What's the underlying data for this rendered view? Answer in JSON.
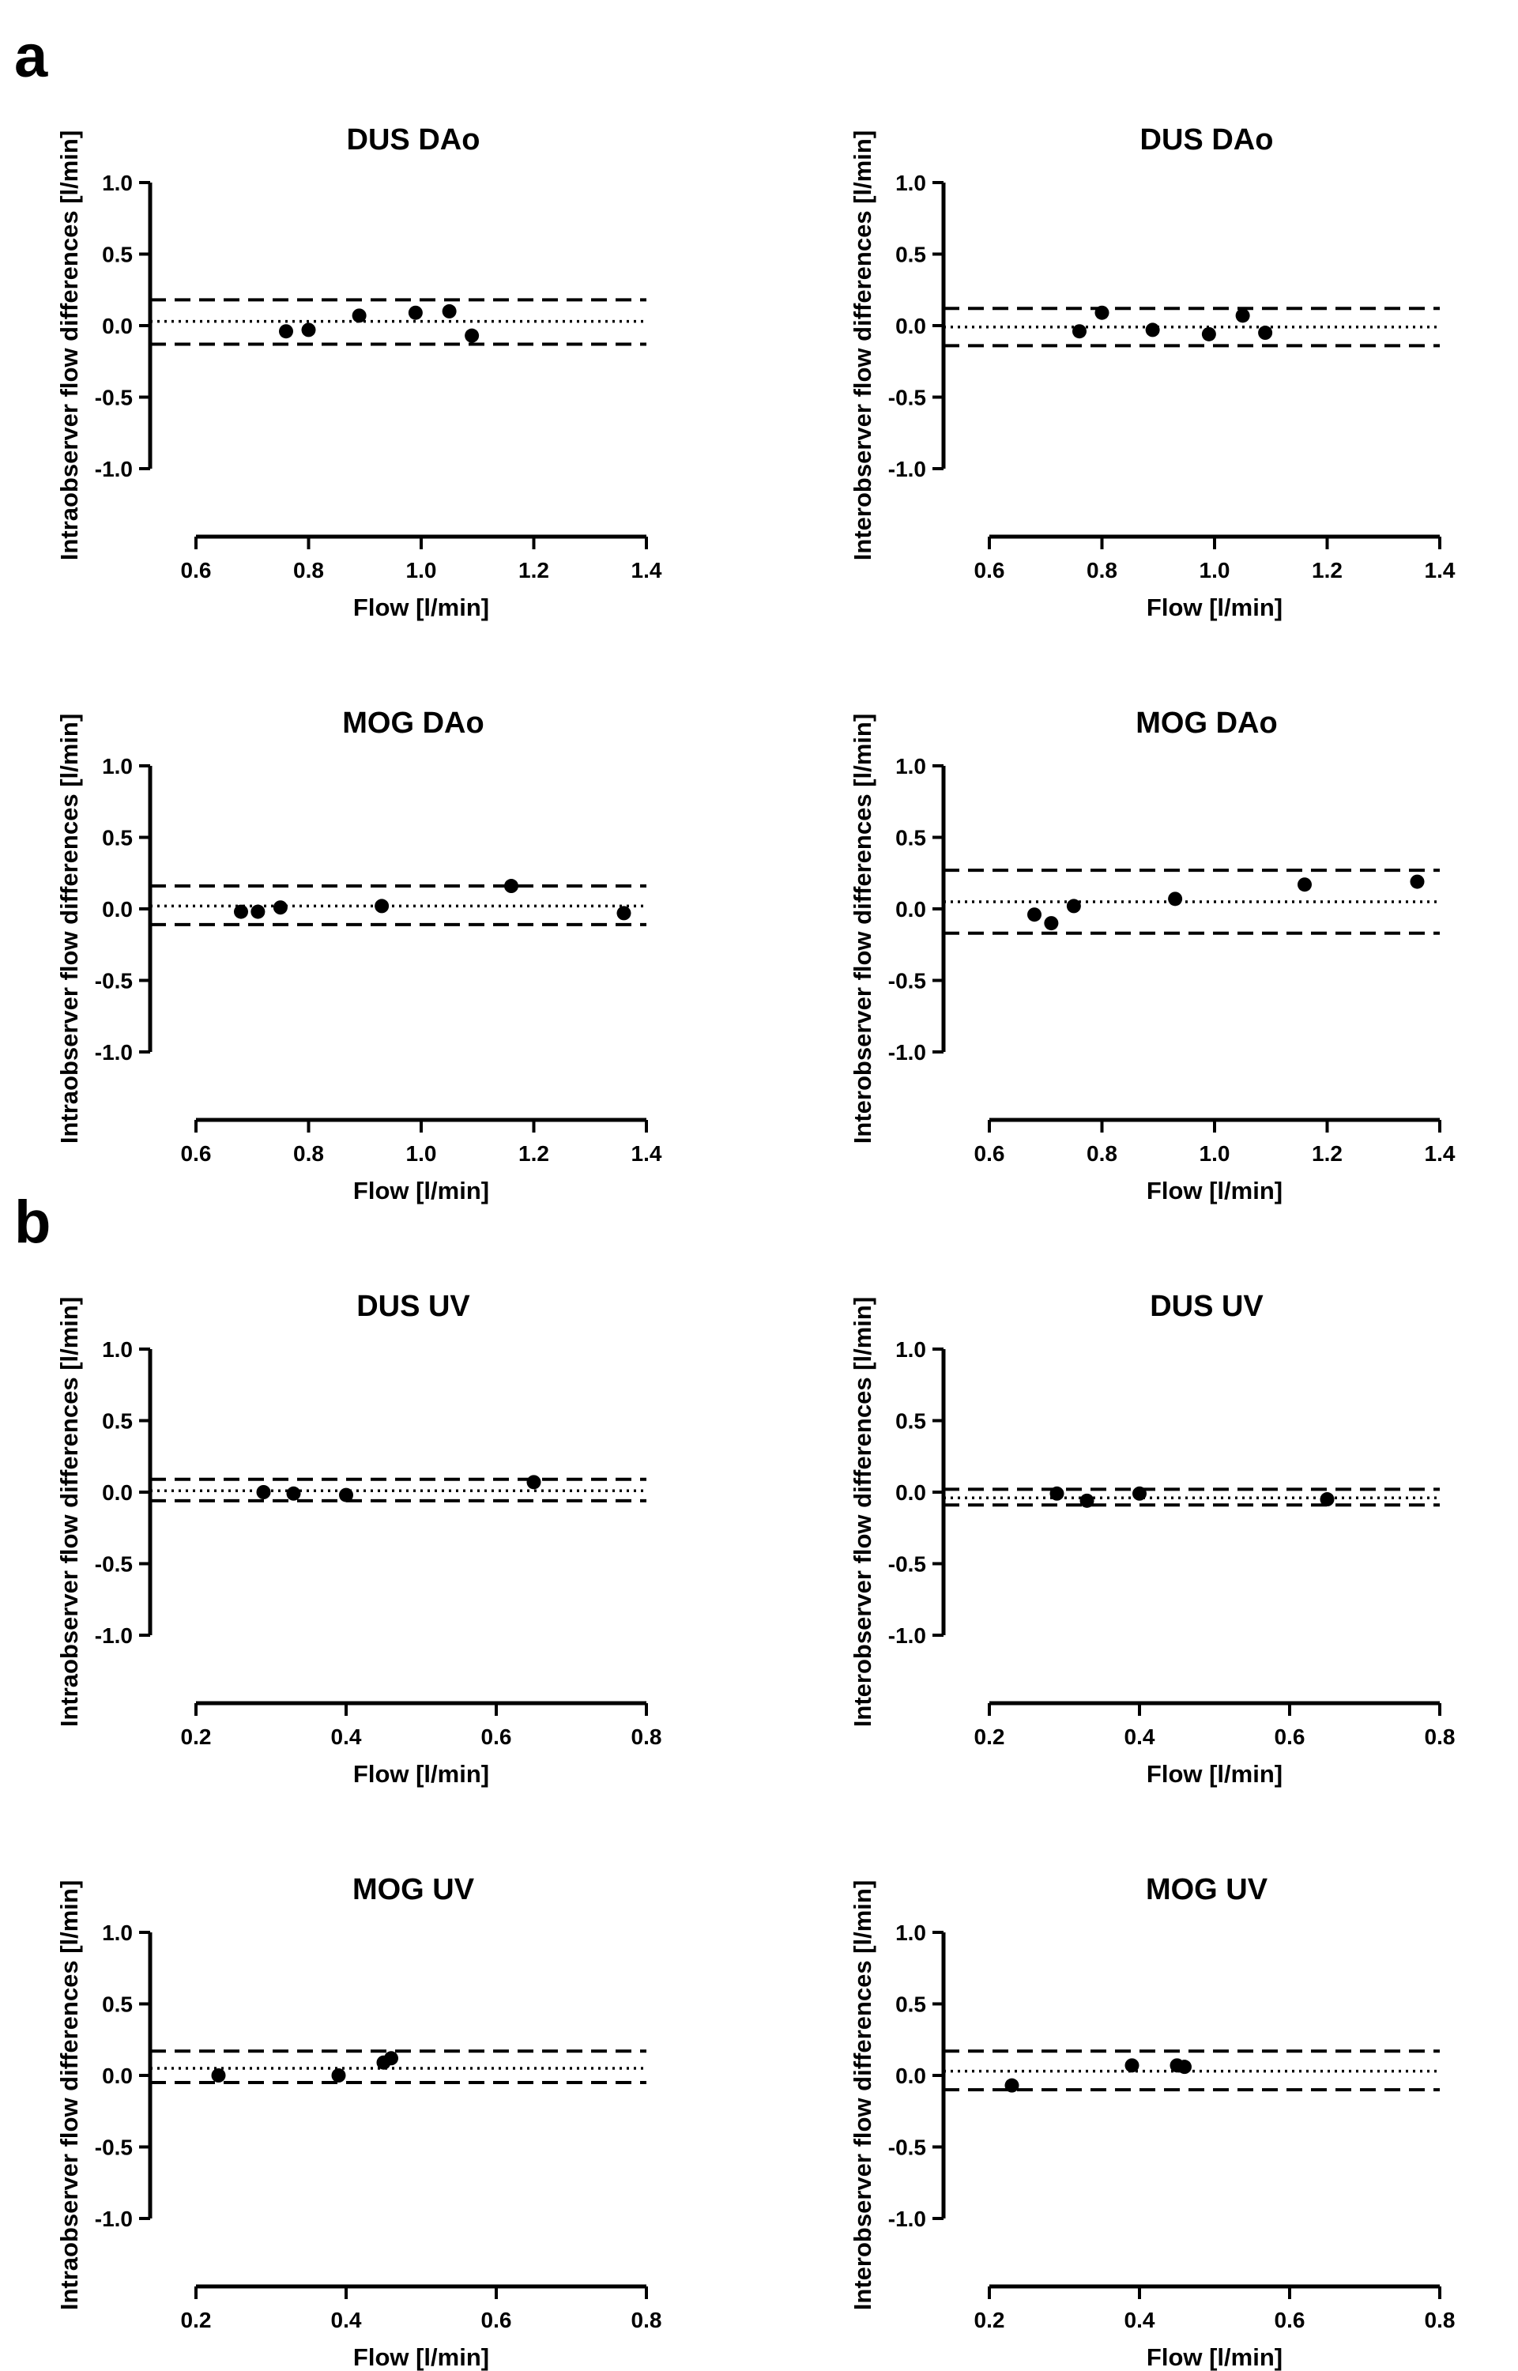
{
  "figure": {
    "panel_letters": [
      "a",
      "b"
    ]
  },
  "chart_data": [
    {
      "type": "scatter",
      "panel": "a",
      "title": "DUS DAo",
      "xlabel": "Flow [l/min]",
      "ylabel": "Intraobserver flow differences [l/min]",
      "xlim": [
        0.6,
        1.4
      ],
      "ylim": [
        -1.0,
        1.0
      ],
      "xticks": [
        0.6,
        0.8,
        1.0,
        1.2,
        1.4
      ],
      "xtick_labels": [
        "0.6",
        "0.8",
        "1.0",
        "1.2",
        "1.4"
      ],
      "yticks": [
        1.0,
        0.5,
        0.0,
        -0.5,
        -1.0
      ],
      "ytick_labels": [
        "1.0",
        "0.5",
        "0.0",
        "-0.5",
        "-1.0"
      ],
      "points": [
        {
          "x": 0.76,
          "y": -0.04
        },
        {
          "x": 0.8,
          "y": -0.03
        },
        {
          "x": 0.89,
          "y": 0.07
        },
        {
          "x": 0.99,
          "y": 0.09
        },
        {
          "x": 1.05,
          "y": 0.1
        },
        {
          "x": 1.09,
          "y": -0.07
        }
      ],
      "mean_line": 0.03,
      "limits_of_agreement": [
        0.18,
        -0.13
      ]
    },
    {
      "type": "scatter",
      "panel": "a",
      "title": "DUS DAo",
      "xlabel": "Flow [l/min]",
      "ylabel": "Interobserver flow differences [l/min]",
      "xlim": [
        0.6,
        1.4
      ],
      "ylim": [
        -1.0,
        1.0
      ],
      "xticks": [
        0.6,
        0.8,
        1.0,
        1.2,
        1.4
      ],
      "xtick_labels": [
        "0.6",
        "0.8",
        "1.0",
        "1.2",
        "1.4"
      ],
      "yticks": [
        1.0,
        0.5,
        0.0,
        -0.5,
        -1.0
      ],
      "ytick_labels": [
        "1.0",
        "0.5",
        "0.0",
        "-0.5",
        "-1.0"
      ],
      "points": [
        {
          "x": 0.76,
          "y": -0.04
        },
        {
          "x": 0.8,
          "y": 0.09
        },
        {
          "x": 0.89,
          "y": -0.03
        },
        {
          "x": 0.99,
          "y": -0.06
        },
        {
          "x": 1.05,
          "y": 0.07
        },
        {
          "x": 1.09,
          "y": -0.05
        }
      ],
      "mean_line": -0.01,
      "limits_of_agreement": [
        0.12,
        -0.14
      ]
    },
    {
      "type": "scatter",
      "panel": "a",
      "title": "MOG DAo",
      "xlabel": "Flow [l/min]",
      "ylabel": "Intraobserver flow differences [l/min]",
      "xlim": [
        0.6,
        1.4
      ],
      "ylim": [
        -1.0,
        1.0
      ],
      "xticks": [
        0.6,
        0.8,
        1.0,
        1.2,
        1.4
      ],
      "xtick_labels": [
        "0.6",
        "0.8",
        "1.0",
        "1.2",
        "1.4"
      ],
      "yticks": [
        1.0,
        0.5,
        0.0,
        -0.5,
        -1.0
      ],
      "ytick_labels": [
        "1.0",
        "0.5",
        "0.0",
        "-0.5",
        "-1.0"
      ],
      "points": [
        {
          "x": 0.68,
          "y": -0.02
        },
        {
          "x": 0.71,
          "y": -0.02
        },
        {
          "x": 0.75,
          "y": 0.01
        },
        {
          "x": 0.93,
          "y": 0.02
        },
        {
          "x": 1.16,
          "y": 0.16
        },
        {
          "x": 1.36,
          "y": -0.03
        }
      ],
      "mean_line": 0.02,
      "limits_of_agreement": [
        0.16,
        -0.11
      ]
    },
    {
      "type": "scatter",
      "panel": "a",
      "title": "MOG DAo",
      "xlabel": "Flow [l/min]",
      "ylabel": "Interobserver flow differences [l/min]",
      "xlim": [
        0.6,
        1.4
      ],
      "ylim": [
        -1.0,
        1.0
      ],
      "xticks": [
        0.6,
        0.8,
        1.0,
        1.2,
        1.4
      ],
      "xtick_labels": [
        "0.6",
        "0.8",
        "1.0",
        "1.2",
        "1.4"
      ],
      "yticks": [
        1.0,
        0.5,
        0.0,
        -0.5,
        -1.0
      ],
      "ytick_labels": [
        "1.0",
        "0.5",
        "0.0",
        "-0.5",
        "-1.0"
      ],
      "points": [
        {
          "x": 0.68,
          "y": -0.04
        },
        {
          "x": 0.71,
          "y": -0.1
        },
        {
          "x": 0.75,
          "y": 0.02
        },
        {
          "x": 0.93,
          "y": 0.07
        },
        {
          "x": 1.16,
          "y": 0.17
        },
        {
          "x": 1.36,
          "y": 0.19
        }
      ],
      "mean_line": 0.05,
      "limits_of_agreement": [
        0.27,
        -0.17
      ]
    },
    {
      "type": "scatter",
      "panel": "b",
      "title": "DUS UV",
      "xlabel": "Flow [l/min]",
      "ylabel": "Intraobserver flow differences [l/min]",
      "xlim": [
        0.2,
        0.8
      ],
      "ylim": [
        -1.0,
        1.0
      ],
      "xticks": [
        0.2,
        0.4,
        0.6,
        0.8
      ],
      "xtick_labels": [
        "0.2",
        "0.4",
        "0.6",
        "0.8"
      ],
      "yticks": [
        1.0,
        0.5,
        0.0,
        -0.5,
        -1.0
      ],
      "ytick_labels": [
        "1.0",
        "0.5",
        "0.0",
        "-0.5",
        "-1.0"
      ],
      "points": [
        {
          "x": 0.29,
          "y": 0.0
        },
        {
          "x": 0.33,
          "y": -0.01
        },
        {
          "x": 0.4,
          "y": -0.02
        },
        {
          "x": 0.65,
          "y": 0.07
        }
      ],
      "mean_line": 0.01,
      "limits_of_agreement": [
        0.09,
        -0.06
      ]
    },
    {
      "type": "scatter",
      "panel": "b",
      "title": "DUS UV",
      "xlabel": "Flow [l/min]",
      "ylabel": "Interobserver flow differences [l/min]",
      "xlim": [
        0.2,
        0.8
      ],
      "ylim": [
        -1.0,
        1.0
      ],
      "xticks": [
        0.2,
        0.4,
        0.6,
        0.8
      ],
      "xtick_labels": [
        "0.2",
        "0.4",
        "0.6",
        "0.8"
      ],
      "yticks": [
        1.0,
        0.5,
        0.0,
        -0.5,
        -1.0
      ],
      "ytick_labels": [
        "1.0",
        "0.5",
        "0.0",
        "-0.5",
        "-1.0"
      ],
      "points": [
        {
          "x": 0.29,
          "y": -0.01
        },
        {
          "x": 0.33,
          "y": -0.06
        },
        {
          "x": 0.4,
          "y": -0.01
        },
        {
          "x": 0.65,
          "y": -0.05
        }
      ],
      "mean_line": -0.04,
      "limits_of_agreement": [
        0.02,
        -0.09
      ]
    },
    {
      "type": "scatter",
      "panel": "b",
      "title": "MOG UV",
      "xlabel": "Flow [l/min]",
      "ylabel": "Intraobserver flow differences [l/min]",
      "xlim": [
        0.2,
        0.8
      ],
      "ylim": [
        -1.0,
        1.0
      ],
      "xticks": [
        0.2,
        0.4,
        0.6,
        0.8
      ],
      "xtick_labels": [
        "0.2",
        "0.4",
        "0.6",
        "0.8"
      ],
      "yticks": [
        1.0,
        0.5,
        0.0,
        -0.5,
        -1.0
      ],
      "ytick_labels": [
        "1.0",
        "0.5",
        "0.0",
        "-0.5",
        "-1.0"
      ],
      "points": [
        {
          "x": 0.23,
          "y": 0.0
        },
        {
          "x": 0.39,
          "y": 0.0
        },
        {
          "x": 0.45,
          "y": 0.09
        },
        {
          "x": 0.46,
          "y": 0.12
        }
      ],
      "mean_line": 0.05,
      "limits_of_agreement": [
        0.17,
        -0.05
      ]
    },
    {
      "type": "scatter",
      "panel": "b",
      "title": "MOG UV",
      "xlabel": "Flow [l/min]",
      "ylabel": "Interobserver flow differences [l/min]",
      "xlim": [
        0.2,
        0.8
      ],
      "ylim": [
        -1.0,
        1.0
      ],
      "xticks": [
        0.2,
        0.4,
        0.6,
        0.8
      ],
      "xtick_labels": [
        "0.2",
        "0.4",
        "0.6",
        "0.8"
      ],
      "yticks": [
        1.0,
        0.5,
        0.0,
        -0.5,
        -1.0
      ],
      "ytick_labels": [
        "1.0",
        "0.5",
        "0.0",
        "-0.5",
        "-1.0"
      ],
      "points": [
        {
          "x": 0.23,
          "y": -0.07
        },
        {
          "x": 0.39,
          "y": 0.07
        },
        {
          "x": 0.45,
          "y": 0.07
        },
        {
          "x": 0.46,
          "y": 0.06
        }
      ],
      "mean_line": 0.03,
      "limits_of_agreement": [
        0.17,
        -0.1
      ]
    }
  ]
}
